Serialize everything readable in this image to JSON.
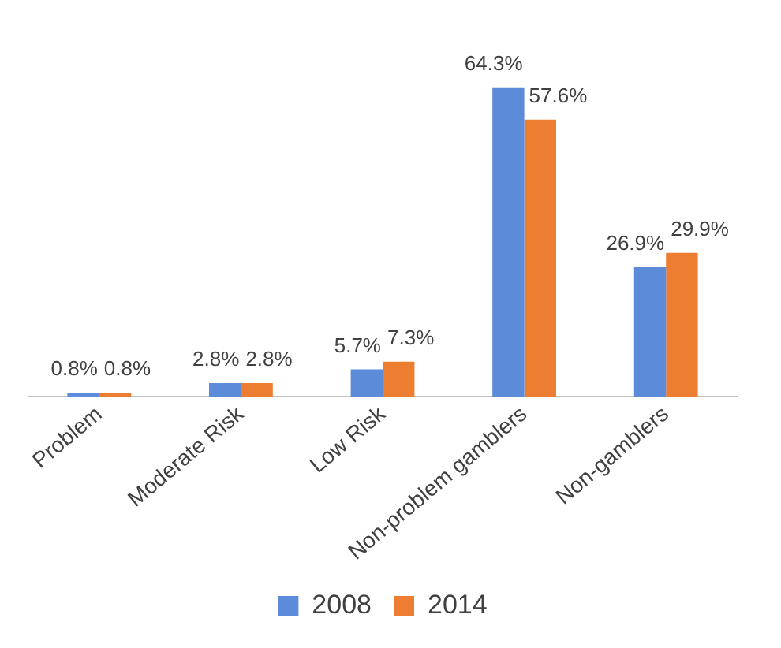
{
  "chart_data": {
    "type": "bar",
    "categories": [
      "Problem",
      "Moderate Risk",
      "Low Risk",
      "Non-problem gamblers",
      "Non-gamblers"
    ],
    "series": [
      {
        "name": "2008",
        "color": "#5b8bd9",
        "values": [
          0.8,
          2.8,
          5.7,
          64.3,
          26.9
        ],
        "value_labels": [
          "0.8%",
          "2.8%",
          "5.7%",
          "64.3%",
          "26.9%"
        ]
      },
      {
        "name": "2014",
        "color": "#ed7d31",
        "values": [
          0.8,
          2.8,
          7.3,
          57.6,
          29.9
        ],
        "value_labels": [
          "0.8%",
          "2.8%",
          "7.3%",
          "57.6%",
          "29.9%"
        ]
      }
    ],
    "legend": "bottom",
    "grid": false
  }
}
